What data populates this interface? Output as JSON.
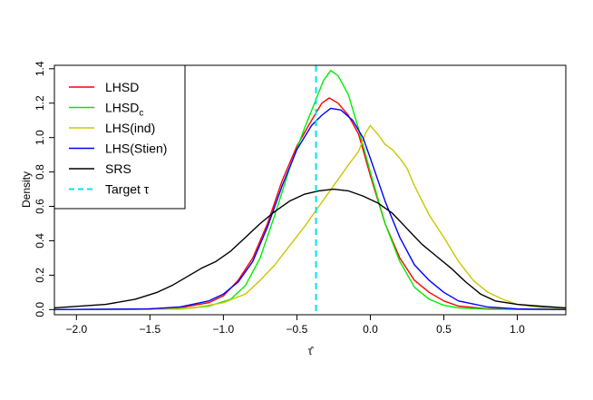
{
  "chart_data": {
    "type": "line",
    "title": "",
    "xlabel": "τ̂",
    "ylabel": "Density",
    "xlim": [
      -2.15,
      1.33
    ],
    "ylim": [
      -0.03,
      1.42
    ],
    "x_ticks": [
      -2.0,
      -1.5,
      -1.0,
      -0.5,
      0.0,
      0.5,
      1.0
    ],
    "x_tick_labels": [
      "−2.0",
      "−1.5",
      "−1.0",
      "−0.5",
      "0.0",
      "0.5",
      "1.0"
    ],
    "y_ticks": [
      0.0,
      0.2,
      0.4,
      0.6,
      0.8,
      1.0,
      1.2,
      1.4
    ],
    "y_tick_labels": [
      "0.0",
      "0.2",
      "0.4",
      "0.6",
      "0.8",
      "1.0",
      "1.2",
      "1.4"
    ],
    "grid": false,
    "legend_position": "top-left",
    "reference_line": {
      "name": "Target τ",
      "x": -0.37,
      "color": "#00e5ee",
      "style": "dashed"
    },
    "series": [
      {
        "name": "LHSD",
        "color": "#ff0000",
        "points": [
          [
            -2.15,
            0.0
          ],
          [
            -1.6,
            0.002
          ],
          [
            -1.3,
            0.01
          ],
          [
            -1.1,
            0.04
          ],
          [
            -1.0,
            0.08
          ],
          [
            -0.9,
            0.17
          ],
          [
            -0.8,
            0.3
          ],
          [
            -0.7,
            0.5
          ],
          [
            -0.6,
            0.75
          ],
          [
            -0.5,
            0.95
          ],
          [
            -0.4,
            1.1
          ],
          [
            -0.33,
            1.2
          ],
          [
            -0.28,
            1.23
          ],
          [
            -0.22,
            1.2
          ],
          [
            -0.15,
            1.13
          ],
          [
            -0.08,
            1.02
          ],
          [
            0.0,
            0.78
          ],
          [
            0.1,
            0.5
          ],
          [
            0.2,
            0.3
          ],
          [
            0.3,
            0.17
          ],
          [
            0.4,
            0.1
          ],
          [
            0.5,
            0.05
          ],
          [
            0.6,
            0.02
          ],
          [
            0.8,
            0.005
          ],
          [
            1.0,
            0.001
          ],
          [
            1.33,
            0.0
          ]
        ]
      },
      {
        "name": "LHSDc",
        "color": "#00ee00",
        "points": [
          [
            -2.15,
            0.0
          ],
          [
            -1.3,
            0.003
          ],
          [
            -1.1,
            0.02
          ],
          [
            -0.95,
            0.06
          ],
          [
            -0.85,
            0.14
          ],
          [
            -0.75,
            0.3
          ],
          [
            -0.65,
            0.55
          ],
          [
            -0.55,
            0.82
          ],
          [
            -0.45,
            1.05
          ],
          [
            -0.38,
            1.2
          ],
          [
            -0.32,
            1.33
          ],
          [
            -0.27,
            1.39
          ],
          [
            -0.22,
            1.36
          ],
          [
            -0.15,
            1.25
          ],
          [
            -0.08,
            1.05
          ],
          [
            0.0,
            0.8
          ],
          [
            0.1,
            0.5
          ],
          [
            0.2,
            0.28
          ],
          [
            0.3,
            0.13
          ],
          [
            0.4,
            0.06
          ],
          [
            0.5,
            0.025
          ],
          [
            0.6,
            0.01
          ],
          [
            0.8,
            0.002
          ],
          [
            1.33,
            0.0
          ]
        ]
      },
      {
        "name": "LHS(ind)",
        "color": "#c8c800",
        "points": [
          [
            -2.15,
            0.0
          ],
          [
            -1.5,
            0.001
          ],
          [
            -1.2,
            0.01
          ],
          [
            -1.0,
            0.04
          ],
          [
            -0.85,
            0.09
          ],
          [
            -0.75,
            0.17
          ],
          [
            -0.65,
            0.26
          ],
          [
            -0.55,
            0.37
          ],
          [
            -0.45,
            0.48
          ],
          [
            -0.35,
            0.6
          ],
          [
            -0.25,
            0.72
          ],
          [
            -0.15,
            0.84
          ],
          [
            -0.08,
            0.92
          ],
          [
            -0.03,
            1.03
          ],
          [
            0.0,
            1.07
          ],
          [
            0.05,
            1.02
          ],
          [
            0.1,
            0.96
          ],
          [
            0.15,
            0.93
          ],
          [
            0.2,
            0.88
          ],
          [
            0.25,
            0.82
          ],
          [
            0.3,
            0.72
          ],
          [
            0.4,
            0.55
          ],
          [
            0.5,
            0.42
          ],
          [
            0.6,
            0.28
          ],
          [
            0.7,
            0.17
          ],
          [
            0.8,
            0.1
          ],
          [
            0.9,
            0.06
          ],
          [
            1.0,
            0.03
          ],
          [
            1.15,
            0.012
          ],
          [
            1.33,
            0.005
          ]
        ]
      },
      {
        "name": "LHS(Stien)",
        "color": "#0000ff",
        "points": [
          [
            -2.15,
            0.0
          ],
          [
            -1.5,
            0.004
          ],
          [
            -1.3,
            0.015
          ],
          [
            -1.1,
            0.05
          ],
          [
            -1.0,
            0.09
          ],
          [
            -0.9,
            0.16
          ],
          [
            -0.8,
            0.28
          ],
          [
            -0.7,
            0.48
          ],
          [
            -0.6,
            0.72
          ],
          [
            -0.5,
            0.93
          ],
          [
            -0.4,
            1.07
          ],
          [
            -0.33,
            1.13
          ],
          [
            -0.27,
            1.17
          ],
          [
            -0.2,
            1.16
          ],
          [
            -0.12,
            1.1
          ],
          [
            -0.05,
            1.0
          ],
          [
            0.0,
            0.88
          ],
          [
            0.1,
            0.63
          ],
          [
            0.2,
            0.42
          ],
          [
            0.3,
            0.26
          ],
          [
            0.4,
            0.17
          ],
          [
            0.5,
            0.1
          ],
          [
            0.6,
            0.05
          ],
          [
            0.8,
            0.015
          ],
          [
            1.0,
            0.004
          ],
          [
            1.33,
            0.0
          ]
        ]
      },
      {
        "name": "SRS",
        "color": "#000000",
        "points": [
          [
            -2.15,
            0.01
          ],
          [
            -1.8,
            0.03
          ],
          [
            -1.6,
            0.06
          ],
          [
            -1.45,
            0.1
          ],
          [
            -1.35,
            0.14
          ],
          [
            -1.25,
            0.19
          ],
          [
            -1.15,
            0.24
          ],
          [
            -1.05,
            0.28
          ],
          [
            -0.95,
            0.34
          ],
          [
            -0.85,
            0.42
          ],
          [
            -0.75,
            0.5
          ],
          [
            -0.65,
            0.57
          ],
          [
            -0.55,
            0.63
          ],
          [
            -0.45,
            0.67
          ],
          [
            -0.35,
            0.69
          ],
          [
            -0.25,
            0.7
          ],
          [
            -0.15,
            0.69
          ],
          [
            -0.05,
            0.66
          ],
          [
            0.05,
            0.62
          ],
          [
            0.15,
            0.56
          ],
          [
            0.25,
            0.47
          ],
          [
            0.35,
            0.38
          ],
          [
            0.45,
            0.31
          ],
          [
            0.55,
            0.24
          ],
          [
            0.65,
            0.16
          ],
          [
            0.75,
            0.09
          ],
          [
            0.85,
            0.05
          ],
          [
            1.0,
            0.03
          ],
          [
            1.15,
            0.02
          ],
          [
            1.33,
            0.01
          ]
        ]
      }
    ],
    "legend": [
      {
        "label": "LHSD",
        "subscript": "",
        "color": "#ff0000",
        "dashed": false
      },
      {
        "label": "LHSD",
        "subscript": "c",
        "color": "#00ee00",
        "dashed": false
      },
      {
        "label": "LHS(ind)",
        "subscript": "",
        "color": "#c8c800",
        "dashed": false
      },
      {
        "label": "LHS(Stien)",
        "subscript": "",
        "color": "#0000ff",
        "dashed": false
      },
      {
        "label": "SRS",
        "subscript": "",
        "color": "#000000",
        "dashed": false
      },
      {
        "label": "Target τ",
        "subscript": "",
        "color": "#00e5ee",
        "dashed": true
      }
    ]
  }
}
